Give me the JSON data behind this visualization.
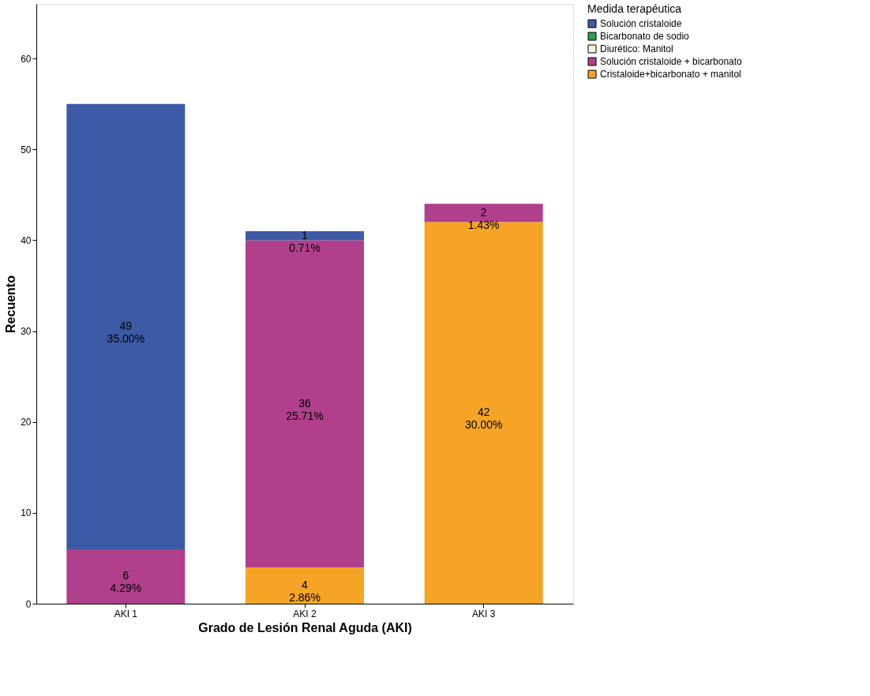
{
  "chart_data": {
    "type": "bar",
    "stacked": true,
    "xlabel": "Grado de Lesión Renal Aguda (AKI)",
    "ylabel": "Recuento",
    "legend_title": "Medida terapéutica",
    "legend": "top right",
    "grid": false,
    "categories": [
      "AKI 1",
      "AKI 2",
      "AKI 3"
    ],
    "ylim": [
      0,
      66
    ],
    "yticks": [
      0,
      10,
      20,
      30,
      40,
      50,
      60
    ],
    "series": [
      {
        "name": "Cristaloide+bicarbonato + manitol",
        "color": "#f5a425",
        "values": [
          null,
          4,
          42
        ],
        "value_labels": [
          null,
          "4\n2.86%",
          "42\n30.00%"
        ]
      },
      {
        "name": "Solución cristaloide + bicarbonato",
        "color": "#b0408c",
        "values": [
          6,
          36,
          2
        ],
        "value_labels": [
          "6\n4.29%",
          "36\n25.71%",
          "2\n1.43%"
        ]
      },
      {
        "name": "Diurético: Manitol",
        "color": "#f6f2dc",
        "values": [
          null,
          null,
          null
        ]
      },
      {
        "name": "Bicarbonato de sodio",
        "color": "#2aa048",
        "values": [
          null,
          null,
          null
        ]
      },
      {
        "name": "Solución cristaloide",
        "color": "#3d5aa6",
        "values": [
          49,
          1,
          null
        ],
        "value_labels": [
          "49\n35.00%",
          "1\n0.71%",
          null
        ]
      }
    ]
  }
}
